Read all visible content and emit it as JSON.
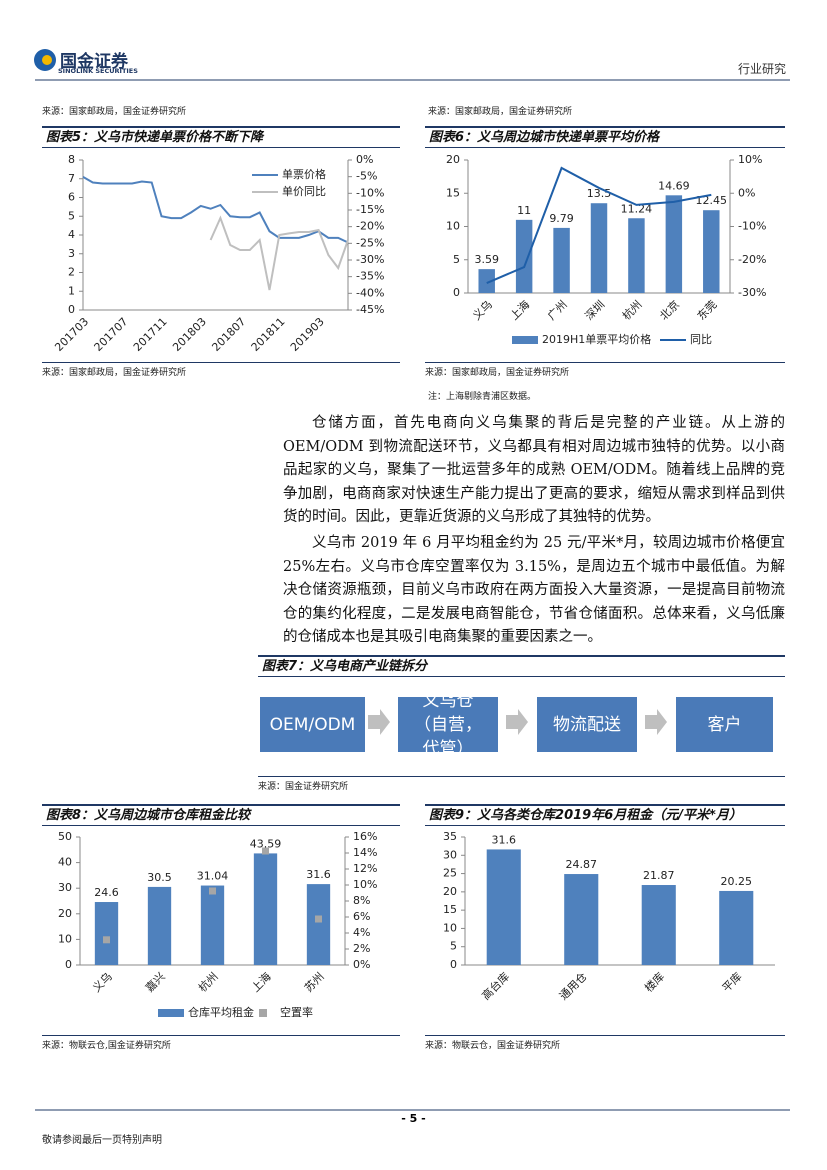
{
  "header": {
    "logo": "国金证券",
    "logo_en": "SINOLINK SECURITIES",
    "section": "行业研究"
  },
  "top_sources": [
    "来源：国家邮政局，国金证券研究所",
    "来源：国家邮政局，国金证券研究所"
  ],
  "chart_data": [
    {
      "type": "line",
      "title": "图表5：义乌市快递单票价格不断下降",
      "categories": [
        "201703",
        null,
        null,
        null,
        "201707",
        null,
        null,
        null,
        "201711",
        null,
        null,
        null,
        "201803",
        null,
        null,
        null,
        "201807",
        null,
        null,
        null,
        "201811",
        null,
        null,
        null,
        "201903",
        null,
        null,
        null
      ],
      "series": [
        {
          "name": "单票价格",
          "color": "#4f81bd",
          "values": [
            7.1,
            6.8,
            6.75,
            6.75,
            6.75,
            6.75,
            6.85,
            6.8,
            5.0,
            4.9,
            4.9,
            5.2,
            5.55,
            5.4,
            5.6,
            5.0,
            4.95,
            4.95,
            5.2,
            4.2,
            3.85,
            3.85,
            3.85,
            4.0,
            4.2,
            3.85,
            3.85,
            3.6
          ]
        },
        {
          "name": "单价同比",
          "color": "#bfbfbf",
          "axis": "y2",
          "values": [
            null,
            null,
            null,
            null,
            null,
            null,
            null,
            null,
            null,
            null,
            null,
            null,
            null,
            -24,
            -17.4,
            -25.5,
            -27,
            -27,
            -24,
            -39,
            -22.5,
            -22,
            -21.6,
            -21.6,
            -21,
            -28.5,
            -32.4,
            -24
          ]
        }
      ],
      "ylim": [
        0,
        8
      ],
      "yticks": [
        0,
        1,
        2,
        3,
        4,
        5,
        6,
        7,
        8
      ],
      "y2lim": [
        -45,
        0
      ],
      "y2ticks": [
        {
          "value": 0,
          "label": "0%"
        },
        {
          "value": -5,
          "label": "-5%"
        },
        {
          "value": -10,
          "label": "-10%"
        },
        {
          "value": -15,
          "label": "-15%"
        },
        {
          "value": -20,
          "label": "-20%"
        },
        {
          "value": -25,
          "label": "-25%"
        },
        {
          "value": -30,
          "label": "-30%"
        },
        {
          "value": -35,
          "label": "-35%"
        },
        {
          "value": -40,
          "label": "-40%"
        },
        {
          "value": -45,
          "label": "-45%"
        }
      ],
      "legend": "upper right",
      "data_labels": false,
      "source": "来源：国家邮政局，国金证券研究所"
    },
    {
      "type": "bar",
      "title": "图表6：义乌周边城市快递单票平均价格",
      "categories": [
        "义乌",
        "上海",
        "广州",
        "深圳",
        "杭州",
        "北京",
        "东莞"
      ],
      "series": [
        {
          "name": "2019H1单票平均价格",
          "color": "#4f81bd",
          "values": [
            3.59,
            11,
            9.79,
            13.5,
            11.24,
            14.69,
            12.45
          ]
        },
        {
          "name": "同比",
          "type": "line",
          "axis": "y2",
          "color": "#1f5fa8",
          "values": [
            -27,
            -22.2,
            7.6,
            1.6,
            -3.5,
            -2.6,
            -0.5
          ]
        }
      ],
      "ylim": [
        0,
        20
      ],
      "yticks": [
        0,
        5,
        10,
        15,
        20
      ],
      "y2lim": [
        -30,
        10
      ],
      "y2ticks": [
        {
          "value": 10,
          "label": "10%"
        },
        {
          "value": 0,
          "label": "0%"
        },
        {
          "value": -10,
          "label": "-10%"
        },
        {
          "value": -20,
          "label": "-20%"
        },
        {
          "value": -30,
          "label": "-30%"
        }
      ],
      "legend": "bottom",
      "data_labels": true,
      "source": "来源：国家邮政局，国金证券研究所",
      "note": "注：上海剔除青浦区数据。"
    },
    {
      "type": "bar",
      "title": "图表8：义乌周边城市仓库租金比较",
      "categories": [
        "义乌",
        "嘉兴",
        "杭州",
        "上海",
        "苏州"
      ],
      "series": [
        {
          "name": "仓库平均租金",
          "color": "#4f81bd",
          "values": [
            24.6,
            30.5,
            31.04,
            43.59,
            31.6
          ]
        },
        {
          "name": "空置率",
          "type": "scatter",
          "axis": "y2",
          "color": "#a6a6a6",
          "values": [
            3.15,
            null,
            9.25,
            14.25,
            5.75
          ]
        }
      ],
      "ylim": [
        0,
        50
      ],
      "yticks": [
        0,
        10,
        20,
        30,
        40,
        50
      ],
      "y2lim": [
        0,
        16
      ],
      "y2ticks": [
        {
          "value": 0,
          "label": "0%"
        },
        {
          "value": 2,
          "label": "2%"
        },
        {
          "value": 4,
          "label": "4%"
        },
        {
          "value": 6,
          "label": "6%"
        },
        {
          "value": 8,
          "label": "8%"
        },
        {
          "value": 10,
          "label": "10%"
        },
        {
          "value": 12,
          "label": "12%"
        },
        {
          "value": 14,
          "label": "14%"
        },
        {
          "value": 16,
          "label": "16%"
        }
      ],
      "legend": "bottom",
      "data_labels": true,
      "source": "来源：物联云仓,国金证券研究所"
    },
    {
      "type": "bar",
      "title": "图表9：义乌各类仓库2019年6月租金（元/平米*月）",
      "categories": [
        "高台库",
        "通用仓",
        "楼库",
        "平库"
      ],
      "series": [
        {
          "name": null,
          "color": "#4f81bd",
          "values": [
            31.6,
            24.87,
            21.87,
            20.25
          ]
        }
      ],
      "ylim": [
        0,
        35
      ],
      "yticks": [
        0,
        5,
        10,
        15,
        20,
        25,
        30,
        35
      ],
      "legend": null,
      "data_labels": true,
      "source": "来源：物联云仓，国金证券研究所"
    }
  ],
  "paragraphs": [
    "仓储方面，首先电商向义乌集聚的背后是完整的产业链。从上游的OEM/ODM 到物流配送环节，义乌都具有相对周边城市独特的优势。以小商品起家的义乌，聚集了一批运营多年的成熟 OEM/ODM。随着线上品牌的竞争加剧，电商商家对快速生产能力提出了更高的要求，缩短从需求到样品到供货的时间。因此，更靠近货源的义乌形成了其独特的优势。",
    "义乌市 2019 年 6 月平均租金约为 25 元/平米*月，较周边城市价格便宜25%左右。义乌市仓库空置率仅为 3.15%，是周边五个城市中最低值。为解决仓储资源瓶颈，目前义乌市政府在两方面投入大量资源，一是提高目前物流仓的集约化程度，二是发展电商智能仓，节省仓储面积。总体来看，义乌低廉的仓储成本也是其吸引电商集聚的重要因素之一。"
  ],
  "diagram": {
    "title": "图表7：义乌电商产业链拆分",
    "nodes": [
      "OEM/ODM",
      "义乌仓（自营，代管）",
      "物流配送",
      "客户"
    ],
    "source": "来源：国金证券研究所"
  },
  "footer": {
    "page": "- 5 -",
    "disclaimer": "敬请参阅最后一页特别声明"
  }
}
